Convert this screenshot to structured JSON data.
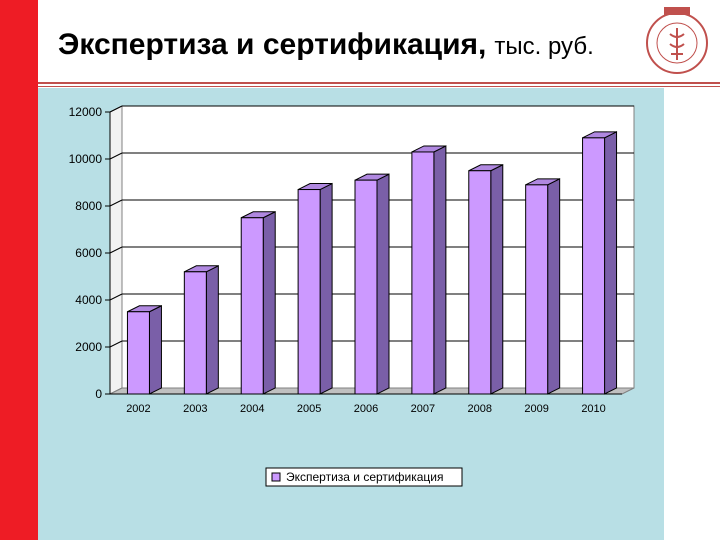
{
  "slide": {
    "title": "Экспертиза и сертификация,",
    "unit": "тыс. руб.",
    "colors": {
      "side_bar": "#ee1c25",
      "rule": "#c0504d",
      "plot_background": "#b8dfe5",
      "bar_face": "#cc99ff",
      "bar_side": "#7a5fa8"
    },
    "logo_icon": "chamber-of-commerce-emblem-icon"
  },
  "chart_data": {
    "type": "bar",
    "categories": [
      "2002",
      "2003",
      "2004",
      "2005",
      "2006",
      "2007",
      "2008",
      "2009",
      "2010"
    ],
    "series": [
      {
        "name": "Экспертиза и сертификация",
        "values": [
          3500,
          5200,
          7500,
          8700,
          9100,
          10300,
          9500,
          8900,
          10900
        ]
      }
    ],
    "ylim": [
      0,
      12000
    ],
    "yticks": [
      "0",
      "2000",
      "4000",
      "6000",
      "8000",
      "10000",
      "12000"
    ],
    "legend_position": "bottom",
    "style": "3d-column"
  }
}
